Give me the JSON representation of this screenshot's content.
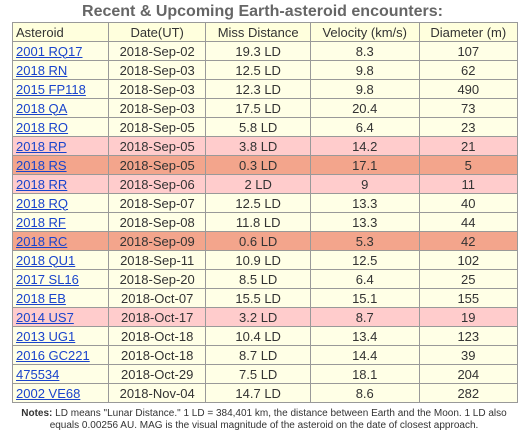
{
  "title": "Recent & Upcoming Earth-asteroid encounters:",
  "table": {
    "header": [
      "Asteroid",
      "Date(UT)",
      "Miss Distance",
      "Velocity (km/s)",
      "Diameter (m)"
    ],
    "rows": [
      [
        "2001 RQ17",
        "2018-Sep-02",
        "19.3 LD",
        "8.3",
        "107"
      ],
      [
        "2018 RN",
        "2018-Sep-03",
        "12.5 LD",
        "9.8",
        "62"
      ],
      [
        "2015 FP118",
        "2018-Sep-03",
        "12.3 LD",
        "9.8",
        "490"
      ],
      [
        "2018 QA",
        "2018-Sep-03",
        "17.5 LD",
        "20.4",
        "73"
      ],
      [
        "2018 RO",
        "2018-Sep-05",
        "5.8 LD",
        "6.4",
        "23"
      ],
      [
        "2018 RP",
        "2018-Sep-05",
        "3.8 LD",
        "14.2",
        "21"
      ],
      [
        "2018 RS",
        "2018-Sep-05",
        "0.3 LD",
        "17.1",
        "5"
      ],
      [
        "2018 RR",
        "2018-Sep-06",
        "2 LD",
        "9",
        "11"
      ],
      [
        "2018 RQ",
        "2018-Sep-07",
        "12.5 LD",
        "13.3",
        "40"
      ],
      [
        "2018 RF",
        "2018-Sep-08",
        "11.8 LD",
        "13.3",
        "44"
      ],
      [
        "2018 RC",
        "2018-Sep-09",
        "0.6 LD",
        "5.3",
        "42"
      ],
      [
        "2018 QU1",
        "2018-Sep-11",
        "10.9 LD",
        "12.5",
        "102"
      ],
      [
        "2017 SL16",
        "2018-Sep-20",
        "8.5 LD",
        "6.4",
        "25"
      ],
      [
        "2018 EB",
        "2018-Oct-07",
        "15.5 LD",
        "15.1",
        "155"
      ],
      [
        "2014 US7",
        "2018-Oct-17",
        "3.2 LD",
        "8.7",
        "19"
      ],
      [
        "2013 UG1",
        "2018-Oct-18",
        "10.4 LD",
        "13.4",
        "123"
      ],
      [
        "2016 GC221",
        "2018-Oct-18",
        "8.7 LD",
        "14.4",
        "39"
      ],
      [
        "475534",
        "2018-Oct-29",
        "7.5 LD",
        "18.1",
        "204"
      ],
      [
        "2002 VE68",
        "2018-Nov-04",
        "14.7 LD",
        "8.6",
        "282"
      ]
    ]
  },
  "notes": {
    "label": "Notes:",
    "text": "LD means \"Lunar Distance.\" 1 LD = 384,401 km, the distance between Earth and the Moon. 1 LD also equals 0.00256 AU. MAG is the visual magnitude of the asteroid on the date of closest approach."
  }
}
